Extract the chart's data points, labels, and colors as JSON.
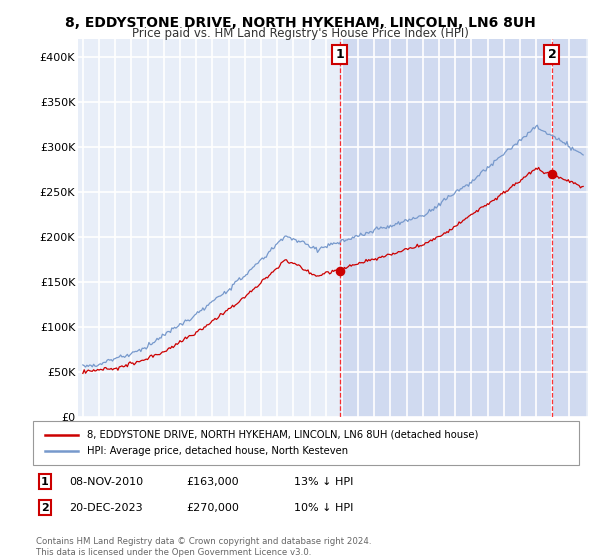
{
  "title": "8, EDDYSTONE DRIVE, NORTH HYKEHAM, LINCOLN, LN6 8UH",
  "subtitle": "Price paid vs. HM Land Registry's House Price Index (HPI)",
  "ylim": [
    0,
    420000
  ],
  "yticks": [
    0,
    50000,
    100000,
    150000,
    200000,
    250000,
    300000,
    350000,
    400000
  ],
  "ytick_labels": [
    "£0",
    "£50K",
    "£100K",
    "£150K",
    "£200K",
    "£250K",
    "£300K",
    "£350K",
    "£400K"
  ],
  "background_color": "#e8eef8",
  "highlight_color": "#d0daf0",
  "grid_color": "#ffffff",
  "hpi_color": "#7799cc",
  "price_color": "#cc0000",
  "annotation1_year": 2010.87,
  "annotation1_val": 163000,
  "annotation2_year": 2023.97,
  "annotation2_val": 270000,
  "legend_line1": "8, EDDYSTONE DRIVE, NORTH HYKEHAM, LINCOLN, LN6 8UH (detached house)",
  "legend_line2": "HPI: Average price, detached house, North Kesteven",
  "info1_date": "08-NOV-2010",
  "info1_price": "£163,000",
  "info1_pct": "13% ↓ HPI",
  "info2_date": "20-DEC-2023",
  "info2_price": "£270,000",
  "info2_pct": "10% ↓ HPI",
  "footnote": "Contains HM Land Registry data © Crown copyright and database right 2024.\nThis data is licensed under the Open Government Licence v3.0."
}
